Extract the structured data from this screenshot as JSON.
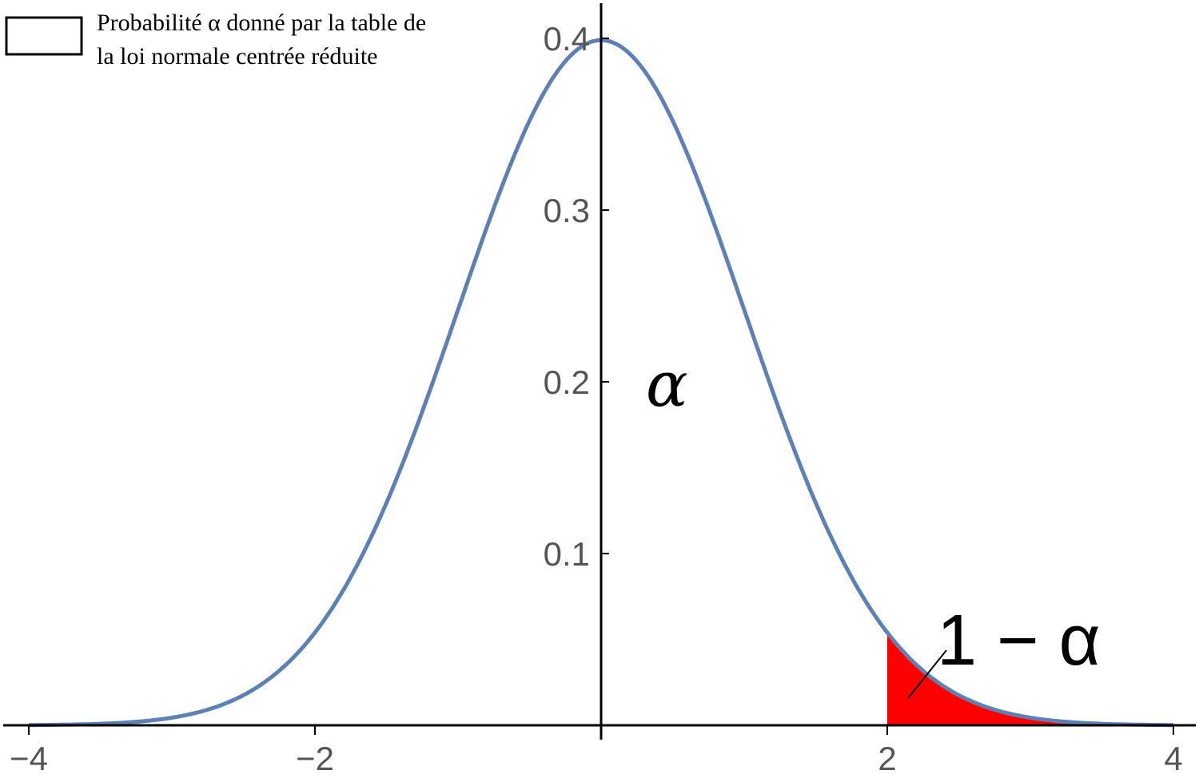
{
  "chart_data": {
    "type": "area",
    "function": "standard normal density",
    "xlim": [
      -4,
      4
    ],
    "ylim": [
      0,
      0.42
    ],
    "x_ticks": [
      {
        "value": -4,
        "label": "−4"
      },
      {
        "value": -2,
        "label": "−2"
      },
      {
        "value": 2,
        "label": "2"
      },
      {
        "value": 4,
        "label": "4"
      }
    ],
    "y_ticks": [
      {
        "value": 0.1,
        "label": "0.1"
      },
      {
        "value": 0.2,
        "label": "0.2"
      },
      {
        "value": 0.3,
        "label": "0.3"
      },
      {
        "value": 0.4,
        "label": "0.4"
      }
    ],
    "series": [
      {
        "x": [
          -4,
          -3.5,
          -3,
          -2.5,
          -2,
          -1.5,
          -1,
          -0.5,
          0,
          0.5,
          1,
          1.5,
          2,
          2.5,
          3,
          3.5,
          4
        ],
        "y": [
          0.0001,
          0.0009,
          0.0044,
          0.0175,
          0.054,
          0.1295,
          0.242,
          0.3521,
          0.3989,
          0.3521,
          0.242,
          0.1295,
          0.054,
          0.0175,
          0.0044,
          0.0009,
          0.0001
        ],
        "color": "#5E81B5"
      }
    ],
    "shaded_region": {
      "x_from": 2,
      "x_to": 4,
      "color": "#FF0000"
    },
    "annotations": {
      "alpha": "α",
      "one_minus_alpha": "1 − α"
    },
    "legend": {
      "position": "top-left",
      "line1": "Probabilité α donné par la table de",
      "line2": "la loi normale centrée réduite"
    },
    "grid": false
  }
}
